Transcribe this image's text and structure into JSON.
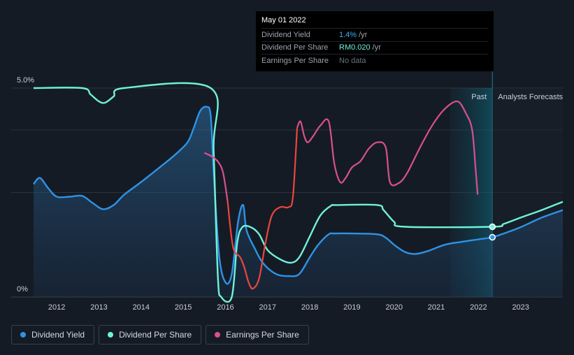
{
  "tooltip": {
    "date": "May 01 2022",
    "rows": [
      {
        "label": "Dividend Yield",
        "value": "1.4%",
        "unit": " /yr",
        "color": "#3bb0f6"
      },
      {
        "label": "Dividend Per Share",
        "value": "RM0.020",
        "unit": " /yr",
        "color": "#6ff2da"
      },
      {
        "label": "Earnings Per Share",
        "value": "No data",
        "unit": "",
        "color": "#6b7380"
      }
    ]
  },
  "regions": {
    "past_label": "Past",
    "forecast_label": "Analysts Forecasts"
  },
  "legend": [
    {
      "label": "Dividend Yield",
      "color": "#2e93e6"
    },
    {
      "label": "Dividend Per Share",
      "color": "#6ff2da"
    },
    {
      "label": "Earnings Per Share",
      "color": "#d9508e"
    }
  ],
  "chart_data": {
    "type": "line",
    "title": "",
    "xlabel": "",
    "ylabel": "",
    "xlim": [
      2011.45,
      2024.0
    ],
    "ylim": [
      0,
      5.0
    ],
    "y_tick_labels": [
      "5.0%",
      "0%"
    ],
    "x_ticks": [
      2012,
      2013,
      2014,
      2015,
      2016,
      2017,
      2018,
      2019,
      2020,
      2021,
      2022,
      2023
    ],
    "today_x": 2022.33,
    "past_start_x": 2021.33,
    "grid": true,
    "series": [
      {
        "name": "Dividend Yield",
        "color": "#2e93e6",
        "area": true,
        "points": [
          [
            2011.45,
            2.7
          ],
          [
            2011.6,
            2.85
          ],
          [
            2011.8,
            2.6
          ],
          [
            2012.0,
            2.4
          ],
          [
            2012.3,
            2.4
          ],
          [
            2012.6,
            2.42
          ],
          [
            2012.85,
            2.25
          ],
          [
            2013.1,
            2.1
          ],
          [
            2013.35,
            2.2
          ],
          [
            2013.6,
            2.45
          ],
          [
            2014.0,
            2.75
          ],
          [
            2014.5,
            3.15
          ],
          [
            2014.8,
            3.4
          ],
          [
            2015.1,
            3.7
          ],
          [
            2015.25,
            4.05
          ],
          [
            2015.4,
            4.45
          ],
          [
            2015.55,
            4.55
          ],
          [
            2015.65,
            4.35
          ],
          [
            2015.72,
            3.0
          ],
          [
            2015.85,
            1.0
          ],
          [
            2016.0,
            0.35
          ],
          [
            2016.15,
            0.55
          ],
          [
            2016.3,
            1.8
          ],
          [
            2016.42,
            2.2
          ],
          [
            2016.5,
            1.6
          ],
          [
            2016.7,
            1.15
          ],
          [
            2016.9,
            0.8
          ],
          [
            2017.2,
            0.55
          ],
          [
            2017.5,
            0.5
          ],
          [
            2017.75,
            0.55
          ],
          [
            2018.0,
            0.95
          ],
          [
            2018.2,
            1.25
          ],
          [
            2018.45,
            1.5
          ],
          [
            2018.6,
            1.52
          ],
          [
            2019.0,
            1.52
          ],
          [
            2019.6,
            1.5
          ],
          [
            2019.8,
            1.42
          ],
          [
            2020.0,
            1.25
          ],
          [
            2020.25,
            1.08
          ],
          [
            2020.5,
            1.03
          ],
          [
            2020.8,
            1.1
          ],
          [
            2021.2,
            1.25
          ],
          [
            2021.6,
            1.32
          ],
          [
            2022.0,
            1.38
          ],
          [
            2022.33,
            1.43
          ],
          [
            2022.6,
            1.52
          ],
          [
            2023.0,
            1.67
          ],
          [
            2023.5,
            1.9
          ],
          [
            2024.0,
            2.08
          ]
        ]
      },
      {
        "name": "Dividend Per Share",
        "color": "#6ff2da",
        "area": false,
        "points": [
          [
            2011.45,
            5.0
          ],
          [
            2012.6,
            5.0
          ],
          [
            2012.8,
            4.85
          ],
          [
            2013.0,
            4.68
          ],
          [
            2013.15,
            4.65
          ],
          [
            2013.35,
            4.8
          ],
          [
            2013.6,
            5.0
          ],
          [
            2015.65,
            5.0
          ],
          [
            2015.72,
            3.5
          ],
          [
            2015.82,
            0.5
          ],
          [
            2015.9,
            0.0
          ],
          [
            2016.15,
            0.0
          ],
          [
            2016.28,
            1.3
          ],
          [
            2016.4,
            1.67
          ],
          [
            2016.6,
            1.67
          ],
          [
            2016.8,
            1.5
          ],
          [
            2017.0,
            1.12
          ],
          [
            2017.3,
            0.9
          ],
          [
            2017.55,
            0.82
          ],
          [
            2017.75,
            0.95
          ],
          [
            2018.0,
            1.45
          ],
          [
            2018.25,
            1.95
          ],
          [
            2018.5,
            2.18
          ],
          [
            2018.65,
            2.2
          ],
          [
            2019.6,
            2.2
          ],
          [
            2019.75,
            2.08
          ],
          [
            2020.0,
            1.8
          ],
          [
            2020.25,
            1.68
          ],
          [
            2022.33,
            1.68
          ],
          [
            2022.6,
            1.75
          ],
          [
            2023.0,
            1.9
          ],
          [
            2023.5,
            2.08
          ],
          [
            2024.0,
            2.28
          ]
        ]
      },
      {
        "name": "Earnings Per Share",
        "color": "#d9508e",
        "color_low": "#e8473f",
        "area": false,
        "points": [
          [
            2015.5,
            3.45
          ],
          [
            2015.7,
            3.35
          ],
          [
            2015.85,
            3.2
          ],
          [
            2015.95,
            2.95
          ],
          [
            2016.05,
            2.3
          ],
          [
            2016.18,
            1.2
          ],
          [
            2016.35,
            0.95
          ],
          [
            2016.45,
            0.7
          ],
          [
            2016.55,
            0.35
          ],
          [
            2016.65,
            0.2
          ],
          [
            2016.8,
            0.45
          ],
          [
            2016.95,
            1.3
          ],
          [
            2017.1,
            1.95
          ],
          [
            2017.3,
            2.15
          ],
          [
            2017.5,
            2.15
          ],
          [
            2017.6,
            2.4
          ],
          [
            2017.7,
            4.05
          ],
          [
            2017.78,
            4.2
          ],
          [
            2017.87,
            3.85
          ],
          [
            2017.95,
            3.7
          ],
          [
            2018.08,
            3.85
          ],
          [
            2018.25,
            4.1
          ],
          [
            2018.45,
            4.2
          ],
          [
            2018.58,
            3.2
          ],
          [
            2018.72,
            2.75
          ],
          [
            2018.85,
            2.85
          ],
          [
            2019.0,
            3.1
          ],
          [
            2019.2,
            3.25
          ],
          [
            2019.4,
            3.55
          ],
          [
            2019.6,
            3.7
          ],
          [
            2019.8,
            3.58
          ],
          [
            2019.9,
            2.75
          ],
          [
            2020.1,
            2.72
          ],
          [
            2020.3,
            2.95
          ],
          [
            2020.6,
            3.55
          ],
          [
            2020.9,
            4.1
          ],
          [
            2021.2,
            4.5
          ],
          [
            2021.5,
            4.68
          ],
          [
            2021.7,
            4.4
          ],
          [
            2021.85,
            4.0
          ],
          [
            2021.93,
            3.1
          ],
          [
            2021.98,
            2.45
          ]
        ]
      }
    ]
  }
}
